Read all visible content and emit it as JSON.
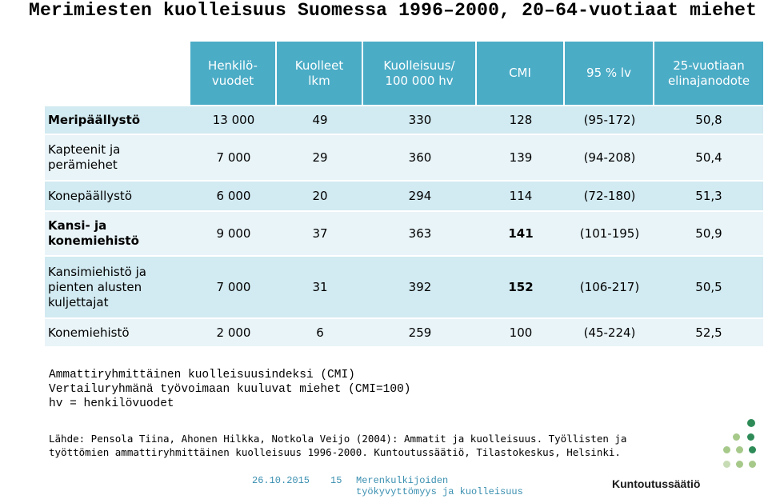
{
  "title": "Merimiesten kuolleisuus Suomessa 1996–2000, 20–64-vuotiaat miehet",
  "table": {
    "headers": [
      "Henkilö-\nvuodet",
      "Kuolleet\nlkm",
      "Kuolleisuus/\n100 000 hv",
      "CMI",
      "95 % lv",
      "25-vuotiaan\nelinajanodote"
    ],
    "rows": [
      {
        "name": "Meripäällystö",
        "cells": [
          "13 000",
          "49",
          "330",
          "128",
          "(95-172)",
          "50,8"
        ]
      },
      {
        "name": "Kapteenit ja\nperämiehet",
        "cells": [
          "7 000",
          "29",
          "360",
          "139",
          "(94-208)",
          "50,4"
        ]
      },
      {
        "name": "Konepäällystö",
        "cells": [
          "6 000",
          "20",
          "294",
          "114",
          "(72-180)",
          "51,3"
        ]
      },
      {
        "name": "Kansi- ja\nkonemiehistö",
        "cells": [
          "9 000",
          "37",
          "363",
          "141",
          "(101-195)",
          "50,9"
        ]
      },
      {
        "name": "Kansimiehistö ja\npienten alusten\nkuljettajat",
        "cells": [
          "7 000",
          "31",
          "392",
          "152",
          "(106-217)",
          "50,5"
        ]
      },
      {
        "name": "Konemiehistö",
        "cells": [
          "2 000",
          "6",
          "259",
          "100",
          "(45-224)",
          "52,5"
        ]
      }
    ]
  },
  "notes": [
    "Ammattiryhmittäinen kuolleisuusindeksi (CMI)",
    "Vertailuryhmänä työvoimaan kuuluvat miehet (CMI=100)",
    "hv = henkilövuodet"
  ],
  "source": "Lähde: Pensola Tiina, Ahonen Hilkka, Notkola Veijo (2004): Ammatit ja kuolleisuus. Työllisten ja työttömien ammattiryhmittäinen kuolleisuus 1996-2000. Kuntoutussäätiö, Tilastokeskus, Helsinki.",
  "footer": {
    "date": "26.10.2015",
    "page": "15",
    "org_line1": "Merenkulkijoiden",
    "org_line2": "työkyvyttömyys ja kuolleisuus"
  },
  "brand": "Kuntoutussäätiö",
  "colors": {
    "header_bg": "#4bacc6",
    "row_dark": "#d2eaf1",
    "row_light": "#e9f4f8",
    "logo_dark": "#2e8b57",
    "logo_light": "#a6c98a",
    "footer_text": "#3a8fb0"
  }
}
